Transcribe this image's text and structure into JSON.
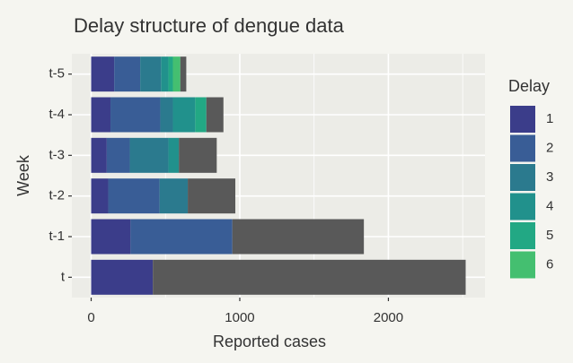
{
  "chart_data": {
    "type": "stacked-barh",
    "title": "Delay structure of dengue data",
    "x_label": "Reported cases",
    "y_label": "Week",
    "legend_title": "Delay",
    "categories": [
      "t",
      "t-1",
      "t-2",
      "t-3",
      "t-4",
      "t-5"
    ],
    "series": [
      {
        "name": "1",
        "color": "#3b3d8a",
        "values": [
          415,
          265,
          115,
          105,
          130,
          155
        ]
      },
      {
        "name": "2",
        "color": "#395d96",
        "values": [
          0,
          685,
          345,
          155,
          335,
          175
        ]
      },
      {
        "name": "3",
        "color": "#2b7a8e",
        "values": [
          0,
          0,
          190,
          260,
          85,
          140
        ]
      },
      {
        "name": "4",
        "color": "#21918c",
        "values": [
          0,
          0,
          0,
          70,
          150,
          50
        ]
      },
      {
        "name": "5",
        "color": "#22a884",
        "values": [
          0,
          0,
          0,
          0,
          75,
          30
        ]
      },
      {
        "name": "6",
        "color": "#44bf70",
        "values": [
          0,
          0,
          0,
          0,
          0,
          50
        ]
      },
      {
        "color": "#595959",
        "values": [
          2105,
          885,
          320,
          255,
          115,
          40
        ]
      }
    ],
    "xlim": [
      -130,
      2650
    ],
    "xticks": [
      0,
      1000,
      2000
    ],
    "x_minor_ticks": [
      500,
      1500,
      2500
    ],
    "grid": true
  }
}
